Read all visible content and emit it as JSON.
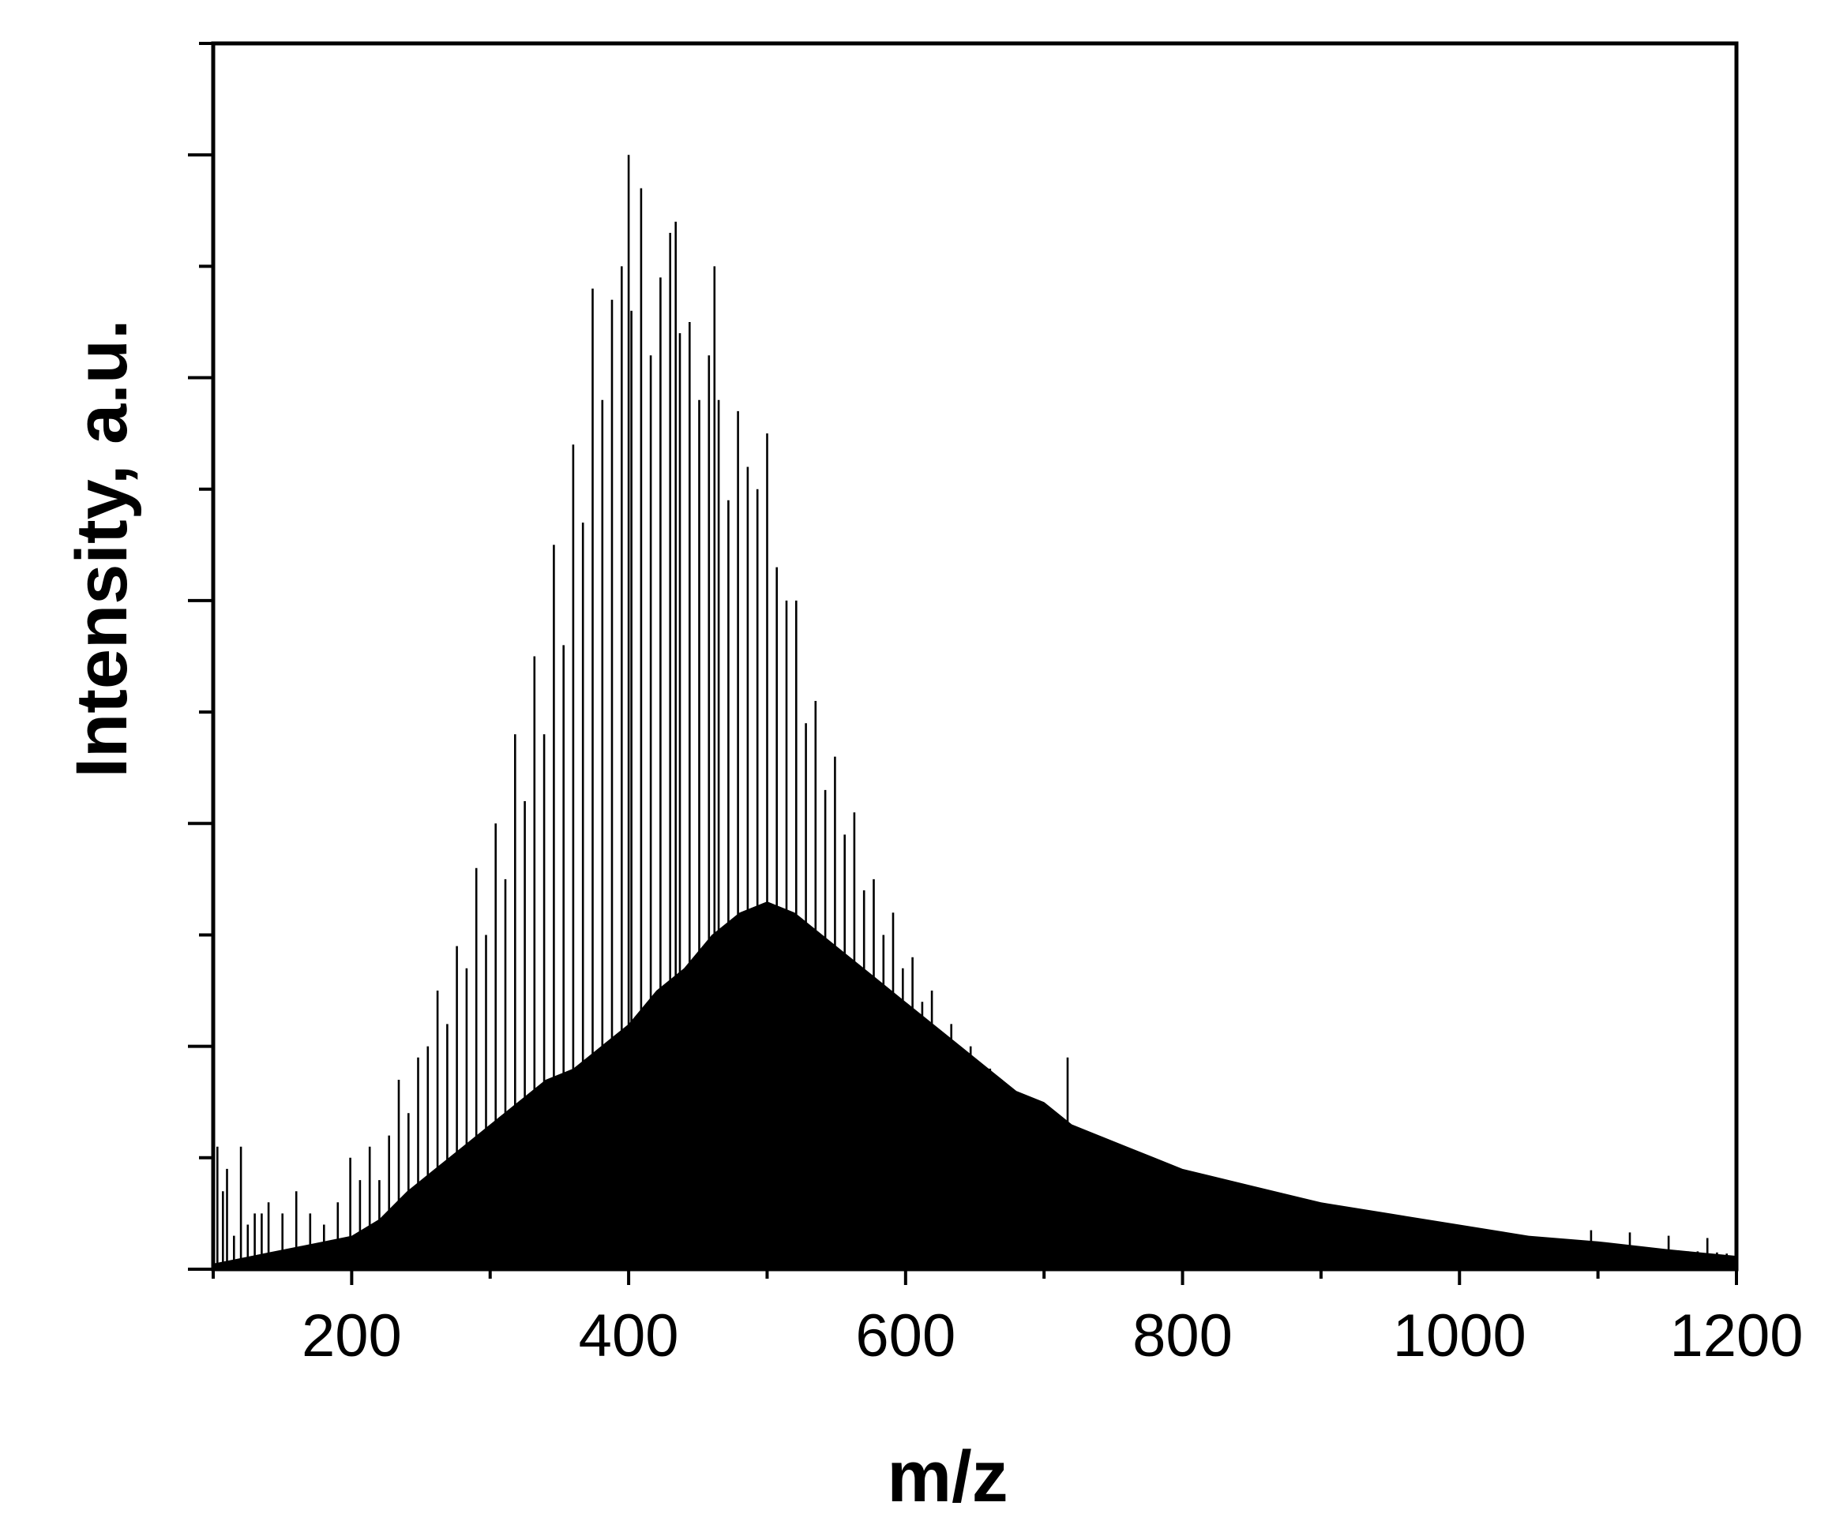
{
  "chart_data": {
    "type": "bar",
    "title": "",
    "xlabel": "m/z",
    "ylabel": "Intensity, a.u.",
    "xlim": [
      100,
      1200
    ],
    "ylim": [
      0,
      1.1
    ],
    "x_ticks": [
      200,
      400,
      600,
      800,
      1000,
      1200
    ],
    "x_tick_labels": [
      "200",
      "400",
      "600",
      "800",
      "1000",
      "1200"
    ],
    "x_minor_step": 100,
    "y_tick_count": 11,
    "y_tick_labels_shown": false,
    "grid": false,
    "legend": "none",
    "colors": {
      "bars": "#000000",
      "axes": "#000000",
      "background": "#ffffff"
    },
    "series": [
      {
        "kind": "envelope",
        "x": [
          100,
          120,
          140,
          160,
          180,
          200,
          220,
          240,
          260,
          280,
          300,
          320,
          340,
          360,
          380,
          400,
          420,
          440,
          460,
          480,
          500,
          520,
          540,
          560,
          580,
          600,
          620,
          640,
          660,
          680,
          700,
          720,
          740,
          760,
          780,
          800,
          850,
          900,
          950,
          1000,
          1050,
          1100,
          1150,
          1200
        ],
        "y": [
          0.005,
          0.01,
          0.015,
          0.02,
          0.025,
          0.03,
          0.045,
          0.07,
          0.09,
          0.11,
          0.13,
          0.15,
          0.17,
          0.18,
          0.2,
          0.22,
          0.25,
          0.27,
          0.3,
          0.32,
          0.33,
          0.32,
          0.3,
          0.28,
          0.26,
          0.24,
          0.22,
          0.2,
          0.18,
          0.16,
          0.15,
          0.13,
          0.12,
          0.11,
          0.1,
          0.09,
          0.075,
          0.06,
          0.05,
          0.04,
          0.03,
          0.025,
          0.018,
          0.012
        ]
      },
      {
        "kind": "peaks",
        "x": [
          103,
          107,
          110,
          115,
          120,
          125,
          130,
          135,
          140,
          150,
          160,
          170,
          180,
          190,
          199,
          206,
          213,
          220,
          227,
          234,
          241,
          248,
          255,
          262,
          269,
          276,
          283,
          290,
          297,
          304,
          311,
          318,
          325,
          332,
          339,
          346,
          353,
          360,
          367,
          374,
          381,
          388,
          395,
          400,
          402,
          409,
          416,
          423,
          430,
          434,
          437,
          444,
          451,
          458,
          462,
          465,
          472,
          479,
          486,
          493,
          500,
          507,
          514,
          521,
          528,
          535,
          542,
          549,
          556,
          563,
          570,
          577,
          584,
          591,
          598,
          605,
          612,
          619,
          626,
          633,
          640,
          647,
          654,
          661,
          668,
          675,
          682,
          689,
          696,
          703,
          710,
          717,
          724,
          731,
          738,
          745,
          752,
          759,
          766,
          773,
          780,
          787,
          794,
          801,
          808,
          815,
          822,
          829,
          836,
          843,
          850,
          857,
          864,
          871,
          878,
          885,
          892,
          899,
          906,
          913,
          920,
          927,
          934,
          941,
          948,
          955,
          962,
          969,
          976,
          983,
          990,
          997,
          1004,
          1011,
          1018,
          1025,
          1032,
          1039,
          1046,
          1053,
          1060,
          1067,
          1074,
          1081,
          1088,
          1095,
          1102,
          1109,
          1116,
          1123,
          1130,
          1137,
          1144,
          1151,
          1158,
          1165,
          1172,
          1179,
          1186,
          1193
        ],
        "y": [
          0.11,
          0.07,
          0.09,
          0.03,
          0.11,
          0.04,
          0.05,
          0.05,
          0.06,
          0.05,
          0.07,
          0.05,
          0.04,
          0.06,
          0.1,
          0.08,
          0.11,
          0.08,
          0.12,
          0.17,
          0.14,
          0.19,
          0.2,
          0.25,
          0.22,
          0.29,
          0.27,
          0.36,
          0.3,
          0.4,
          0.35,
          0.48,
          0.42,
          0.55,
          0.48,
          0.65,
          0.56,
          0.74,
          0.67,
          0.88,
          0.78,
          0.87,
          0.9,
          1.0,
          0.86,
          0.97,
          0.82,
          0.89,
          0.93,
          0.94,
          0.84,
          0.85,
          0.78,
          0.82,
          0.9,
          0.78,
          0.69,
          0.77,
          0.72,
          0.7,
          0.75,
          0.63,
          0.6,
          0.6,
          0.49,
          0.51,
          0.43,
          0.46,
          0.39,
          0.41,
          0.34,
          0.35,
          0.3,
          0.32,
          0.27,
          0.28,
          0.24,
          0.25,
          0.21,
          0.22,
          0.19,
          0.2,
          0.17,
          0.18,
          0.15,
          0.16,
          0.14,
          0.15,
          0.13,
          0.13,
          0.13,
          0.19,
          0.12,
          0.12,
          0.11,
          0.11,
          0.1,
          0.1,
          0.095,
          0.09,
          0.09,
          0.085,
          0.085,
          0.08,
          0.078,
          0.075,
          0.072,
          0.07,
          0.068,
          0.066,
          0.064,
          0.06,
          0.058,
          0.056,
          0.054,
          0.052,
          0.05,
          0.049,
          0.047,
          0.046,
          0.045,
          0.044,
          0.042,
          0.04,
          0.038,
          0.037,
          0.036,
          0.035,
          0.034,
          0.033,
          0.032,
          0.031,
          0.03,
          0.03,
          0.029,
          0.028,
          0.027,
          0.026,
          0.025,
          0.025,
          0.024,
          0.024,
          0.023,
          0.022,
          0.022,
          0.035,
          0.021,
          0.02,
          0.02,
          0.033,
          0.019,
          0.018,
          0.018,
          0.03,
          0.017,
          0.016,
          0.016,
          0.028,
          0.015,
          0.014
        ]
      }
    ]
  }
}
